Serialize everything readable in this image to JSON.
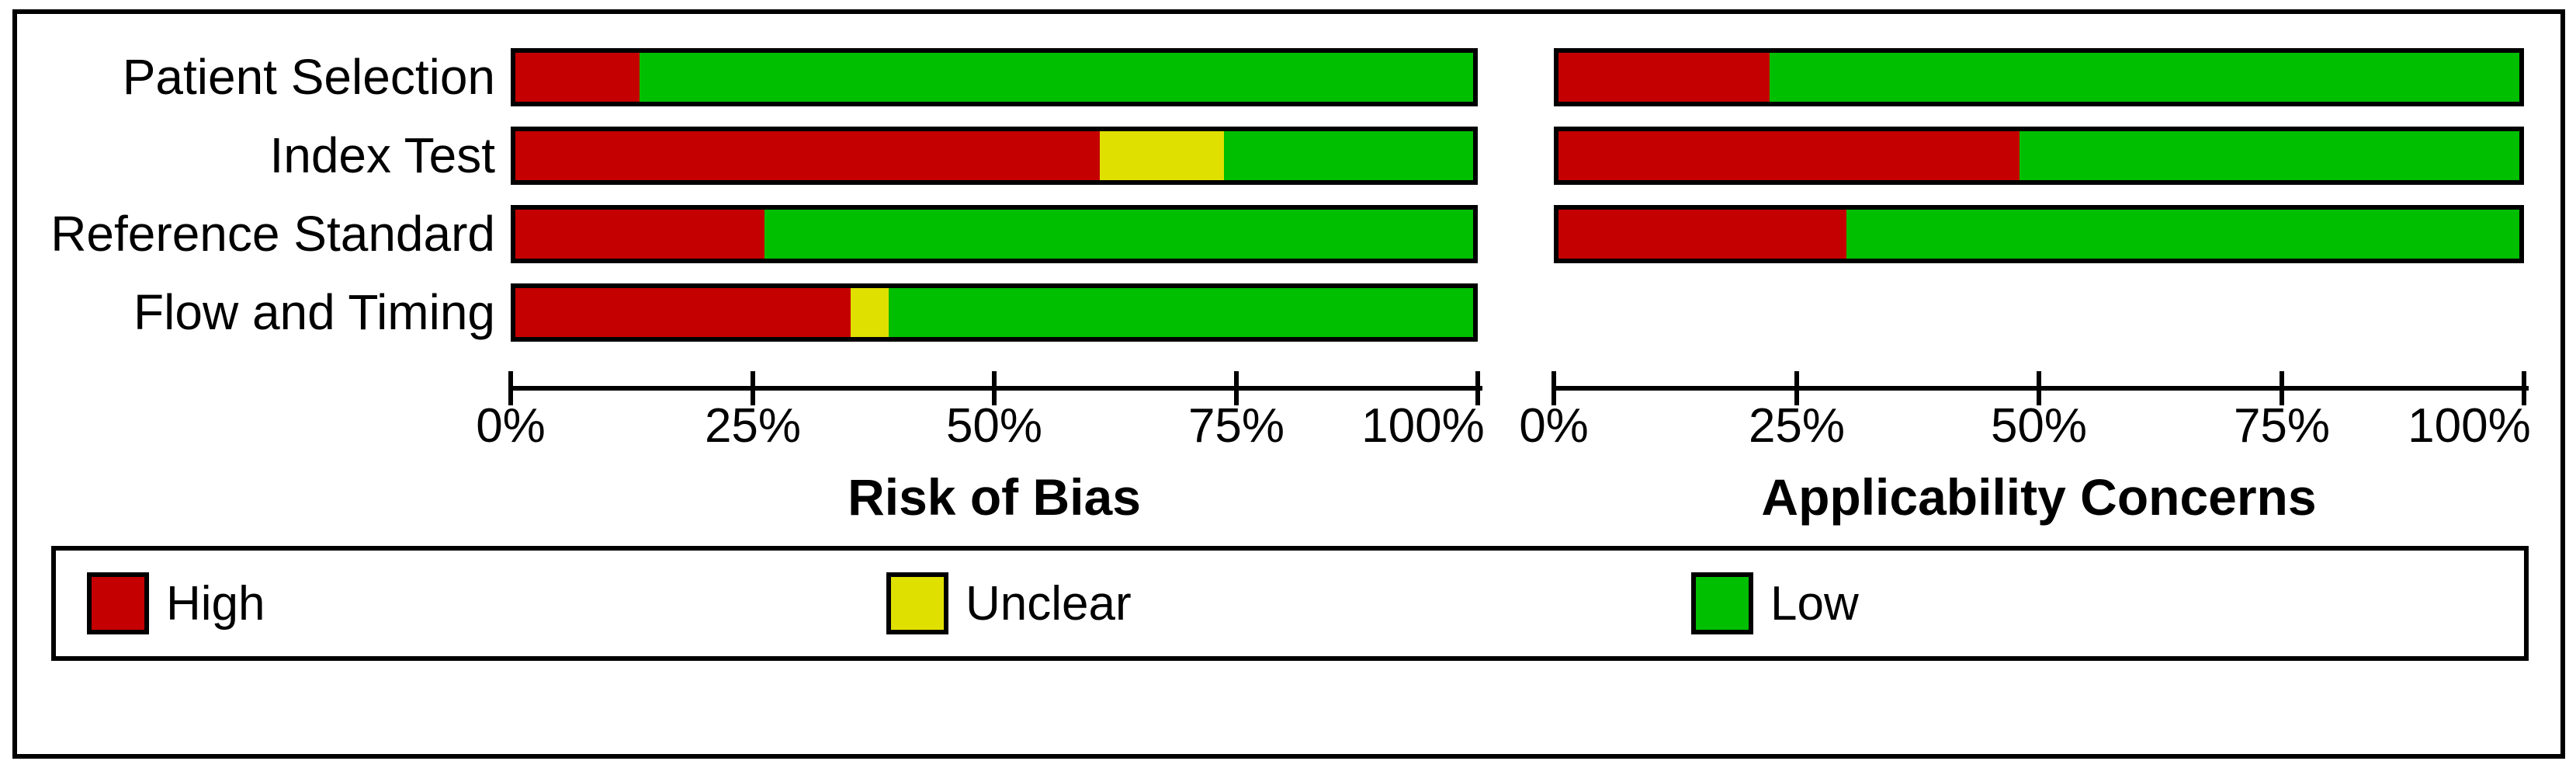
{
  "figure": {
    "row_labels": [
      "Patient Selection",
      "Index Test",
      "Reference Standard",
      "Flow and Timing"
    ],
    "legend": [
      {
        "key": "high",
        "label": "High",
        "color": "#C40000"
      },
      {
        "key": "unclear",
        "label": "Unclear",
        "color": "#E0E000"
      },
      {
        "key": "low",
        "label": "Low",
        "color": "#00BE00"
      }
    ]
  },
  "chart_data": [
    {
      "type": "bar",
      "orientation": "horizontal",
      "stacked": true,
      "title": "Risk of Bias",
      "categories": [
        "Patient Selection",
        "Index Test",
        "Reference Standard",
        "Flow and Timing"
      ],
      "series": [
        {
          "name": "High",
          "color": "#C40000",
          "values": [
            13,
            61,
            26,
            35
          ]
        },
        {
          "name": "Unclear",
          "color": "#E0E000",
          "values": [
            0,
            13,
            0,
            4
          ]
        },
        {
          "name": "Low",
          "color": "#00BE00",
          "values": [
            87,
            26,
            74,
            61
          ]
        }
      ],
      "x_tick_labels": [
        "0%",
        "25%",
        "50%",
        "75%",
        "100%"
      ],
      "xlim": [
        0,
        100
      ],
      "unit": "percent of studies",
      "grid": false,
      "legend_position": "bottom"
    },
    {
      "type": "bar",
      "orientation": "horizontal",
      "stacked": true,
      "title": "Applicability Concerns",
      "categories": [
        "Patient Selection",
        "Index Test",
        "Reference Standard",
        "Flow and Timing"
      ],
      "series": [
        {
          "name": "High",
          "color": "#C40000",
          "values": [
            22,
            48,
            30,
            null
          ]
        },
        {
          "name": "Unclear",
          "color": "#E0E000",
          "values": [
            0,
            0,
            0,
            null
          ]
        },
        {
          "name": "Low",
          "color": "#00BE00",
          "values": [
            78,
            52,
            70,
            null
          ]
        }
      ],
      "x_tick_labels": [
        "0%",
        "25%",
        "50%",
        "75%",
        "100%"
      ],
      "xlim": [
        0,
        100
      ],
      "unit": "percent of studies",
      "grid": false,
      "legend_position": "bottom"
    }
  ]
}
